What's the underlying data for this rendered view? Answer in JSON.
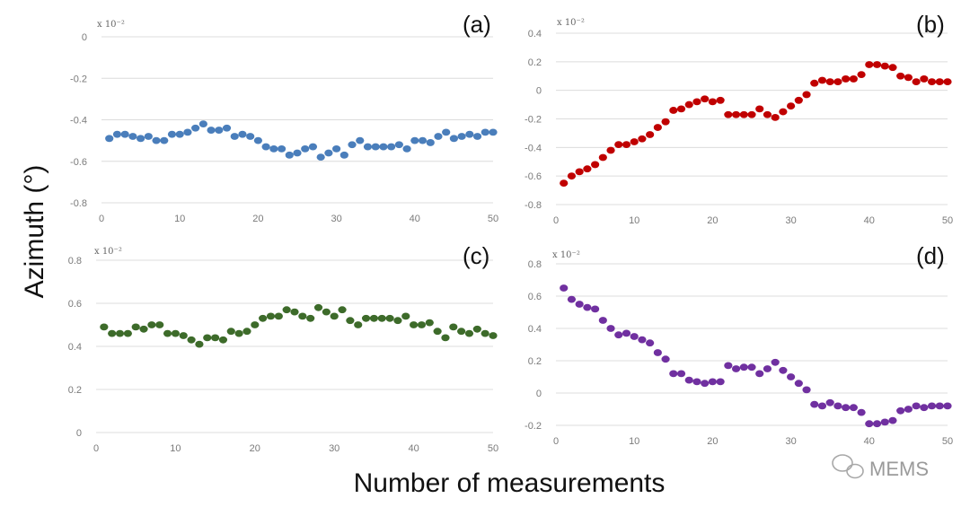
{
  "figure": {
    "ylabel": "Azimuth (°)",
    "xlabel": "Number of measurements",
    "watermark": "MEMS"
  },
  "chart_data": [
    {
      "type": "scatter",
      "panel": "(a)",
      "scale_note": "x 10⁻²",
      "color": "#4a7ebb",
      "xlim": [
        0,
        50
      ],
      "ylim": [
        -0.8,
        0
      ],
      "xticks": [
        0,
        10,
        20,
        30,
        40,
        50
      ],
      "yticks": [
        0,
        -0.2,
        -0.4,
        -0.6,
        -0.8
      ],
      "ytick_labels": [
        "0",
        "-0.2",
        "-0.4",
        "-0.6",
        "-0.8"
      ],
      "x": [
        1,
        2,
        3,
        4,
        5,
        6,
        7,
        8,
        9,
        10,
        11,
        12,
        13,
        14,
        15,
        16,
        17,
        18,
        19,
        20,
        21,
        22,
        23,
        24,
        25,
        26,
        27,
        28,
        29,
        30,
        31,
        32,
        33,
        34,
        35,
        36,
        37,
        38,
        39,
        40,
        41,
        42,
        43,
        44,
        45,
        46,
        47,
        48,
        49,
        50
      ],
      "y": [
        -0.49,
        -0.47,
        -0.47,
        -0.48,
        -0.49,
        -0.48,
        -0.5,
        -0.5,
        -0.47,
        -0.47,
        -0.46,
        -0.44,
        -0.42,
        -0.45,
        -0.45,
        -0.44,
        -0.48,
        -0.47,
        -0.48,
        -0.5,
        -0.53,
        -0.54,
        -0.54,
        -0.57,
        -0.56,
        -0.54,
        -0.53,
        -0.58,
        -0.56,
        -0.54,
        -0.57,
        -0.52,
        -0.5,
        -0.53,
        -0.53,
        -0.53,
        -0.53,
        -0.52,
        -0.54,
        -0.5,
        -0.5,
        -0.51,
        -0.48,
        -0.46,
        -0.49,
        -0.48,
        -0.47,
        -0.48,
        -0.46,
        -0.46
      ]
    },
    {
      "type": "scatter",
      "panel": "(b)",
      "scale_note": "x 10⁻²",
      "color": "#c00000",
      "xlim": [
        0,
        50
      ],
      "ylim": [
        -0.8,
        0.4
      ],
      "xticks": [
        0,
        10,
        20,
        30,
        40,
        50
      ],
      "yticks": [
        0.4,
        0.2,
        0,
        -0.2,
        -0.4,
        -0.6,
        -0.8
      ],
      "ytick_labels": [
        "0.4",
        "0.2",
        "0",
        "-0.2",
        "-0.4",
        "-0.6",
        "-0.8"
      ],
      "x": [
        1,
        2,
        3,
        4,
        5,
        6,
        7,
        8,
        9,
        10,
        11,
        12,
        13,
        14,
        15,
        16,
        17,
        18,
        19,
        20,
        21,
        22,
        23,
        24,
        25,
        26,
        27,
        28,
        29,
        30,
        31,
        32,
        33,
        34,
        35,
        36,
        37,
        38,
        39,
        40,
        41,
        42,
        43,
        44,
        45,
        46,
        47,
        48,
        49,
        50
      ],
      "y": [
        -0.65,
        -0.6,
        -0.57,
        -0.55,
        -0.52,
        -0.47,
        -0.42,
        -0.38,
        -0.38,
        -0.36,
        -0.34,
        -0.31,
        -0.26,
        -0.22,
        -0.14,
        -0.13,
        -0.1,
        -0.08,
        -0.06,
        -0.08,
        -0.07,
        -0.17,
        -0.17,
        -0.17,
        -0.17,
        -0.13,
        -0.17,
        -0.19,
        -0.15,
        -0.11,
        -0.07,
        -0.03,
        0.05,
        0.07,
        0.06,
        0.06,
        0.08,
        0.08,
        0.11,
        0.18,
        0.18,
        0.17,
        0.16,
        0.1,
        0.09,
        0.06,
        0.08,
        0.06,
        0.06,
        0.06
      ]
    },
    {
      "type": "scatter",
      "panel": "(c)",
      "scale_note": "x 10⁻²",
      "color": "#3d6b2a",
      "xlim": [
        0,
        50
      ],
      "ylim": [
        0,
        0.8
      ],
      "xticks": [
        0,
        10,
        20,
        30,
        40,
        50
      ],
      "yticks": [
        0.8,
        0.6,
        0.4,
        0.2,
        0
      ],
      "ytick_labels": [
        "0.8",
        "0.6",
        "0.4",
        "0.2",
        "0"
      ],
      "x": [
        1,
        2,
        3,
        4,
        5,
        6,
        7,
        8,
        9,
        10,
        11,
        12,
        13,
        14,
        15,
        16,
        17,
        18,
        19,
        20,
        21,
        22,
        23,
        24,
        25,
        26,
        27,
        28,
        29,
        30,
        31,
        32,
        33,
        34,
        35,
        36,
        37,
        38,
        39,
        40,
        41,
        42,
        43,
        44,
        45,
        46,
        47,
        48,
        49,
        50
      ],
      "y": [
        0.49,
        0.46,
        0.46,
        0.46,
        0.49,
        0.48,
        0.5,
        0.5,
        0.46,
        0.46,
        0.45,
        0.43,
        0.41,
        0.44,
        0.44,
        0.43,
        0.47,
        0.46,
        0.47,
        0.5,
        0.53,
        0.54,
        0.54,
        0.57,
        0.56,
        0.54,
        0.53,
        0.58,
        0.56,
        0.54,
        0.57,
        0.52,
        0.5,
        0.53,
        0.53,
        0.53,
        0.53,
        0.52,
        0.54,
        0.5,
        0.5,
        0.51,
        0.47,
        0.44,
        0.49,
        0.47,
        0.46,
        0.48,
        0.46,
        0.45
      ]
    },
    {
      "type": "scatter",
      "panel": "(d)",
      "scale_note": "x 10⁻²",
      "color": "#7030a0",
      "xlim": [
        0,
        50
      ],
      "ylim": [
        -0.2,
        0.8
      ],
      "xticks": [
        0,
        10,
        20,
        30,
        40,
        50
      ],
      "yticks": [
        0.8,
        0.6,
        0.4,
        0.2,
        0,
        -0.2
      ],
      "ytick_labels": [
        "0.8",
        "0.6",
        "0.4",
        "0.2",
        "0",
        "-0.2"
      ],
      "x": [
        1,
        2,
        3,
        4,
        5,
        6,
        7,
        8,
        9,
        10,
        11,
        12,
        13,
        14,
        15,
        16,
        17,
        18,
        19,
        20,
        21,
        22,
        23,
        24,
        25,
        26,
        27,
        28,
        29,
        30,
        31,
        32,
        33,
        34,
        35,
        36,
        37,
        38,
        39,
        40,
        41,
        42,
        43,
        44,
        45,
        46,
        47,
        48,
        49,
        50
      ],
      "y": [
        0.65,
        0.58,
        0.55,
        0.53,
        0.52,
        0.45,
        0.4,
        0.36,
        0.37,
        0.35,
        0.33,
        0.31,
        0.25,
        0.21,
        0.12,
        0.12,
        0.08,
        0.07,
        0.06,
        0.07,
        0.07,
        0.17,
        0.15,
        0.16,
        0.16,
        0.12,
        0.15,
        0.19,
        0.14,
        0.1,
        0.06,
        0.02,
        -0.07,
        -0.08,
        -0.06,
        -0.08,
        -0.09,
        -0.09,
        -0.12,
        -0.19,
        -0.19,
        -0.18,
        -0.17,
        -0.11,
        -0.1,
        -0.08,
        -0.09,
        -0.08,
        -0.08,
        -0.08
      ]
    }
  ]
}
